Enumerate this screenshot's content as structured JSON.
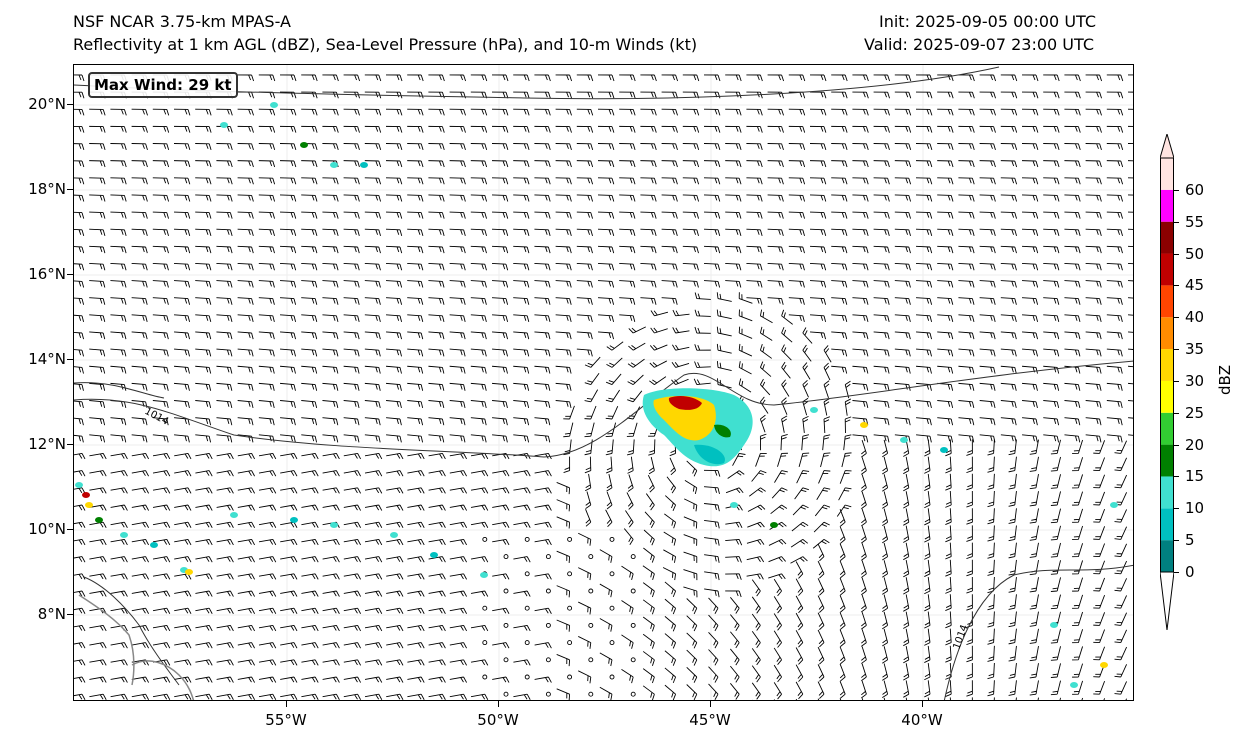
{
  "header": {
    "title_left_1": "NSF NCAR 3.75-km MPAS-A",
    "title_left_2": "Reflectivity at 1 km AGL (dBZ), Sea-Level Pressure (hPa), and 10-m Winds (kt)",
    "title_right_1": "Init: 2025-09-05 00:00 UTC",
    "title_right_2": "Valid: 2025-09-07 23:00 UTC"
  },
  "map": {
    "max_wind_label": "Max Wind: 29 kt",
    "lat_ticks": [
      "20°N",
      "18°N",
      "16°N",
      "14°N",
      "12°N",
      "10°N",
      "8°N"
    ],
    "lon_ticks": [
      "55°W",
      "50°W",
      "45°W",
      "40°W"
    ],
    "isobar_labels": [
      "1014",
      "1014"
    ],
    "lon_range": [
      -60,
      -35
    ],
    "lat_range": [
      6,
      21
    ]
  },
  "colorbar": {
    "label": "dBZ",
    "ticks": [
      "0",
      "5",
      "10",
      "15",
      "20",
      "25",
      "30",
      "35",
      "40",
      "45",
      "50",
      "55",
      "60"
    ],
    "colors": [
      "#008080",
      "#00c0c0",
      "#40e0d0",
      "#008000",
      "#32cd32",
      "#ffff00",
      "#ffd700",
      "#ff8c00",
      "#ff4500",
      "#c00000",
      "#8b0000",
      "#ff00ff",
      "#ffe4e1"
    ]
  }
}
